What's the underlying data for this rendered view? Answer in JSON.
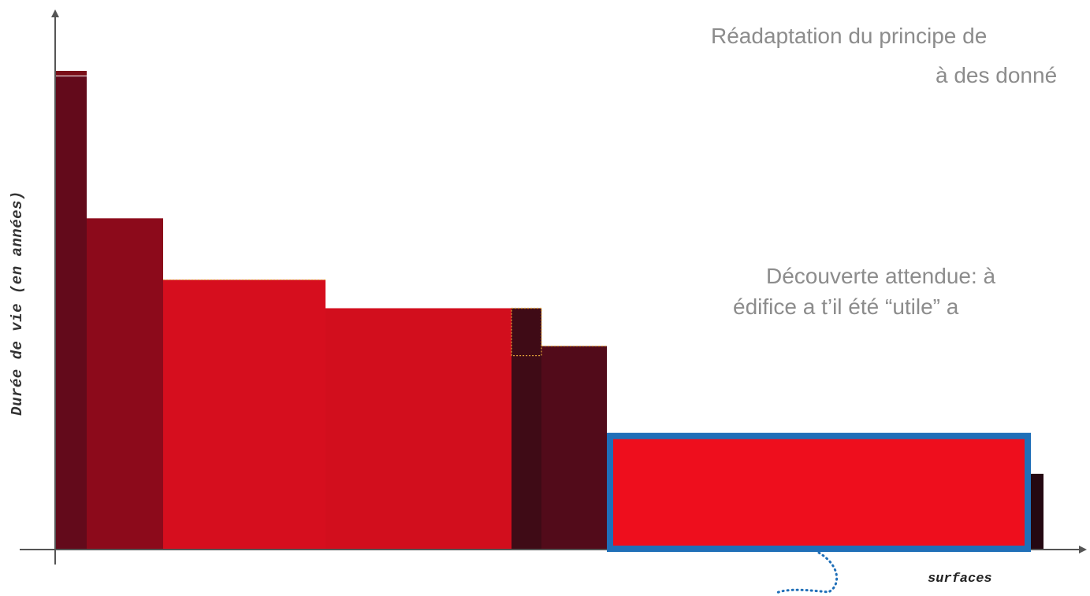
{
  "chart_data": {
    "type": "bar",
    "variant": "variable-width (surface-weighted) bars",
    "xlabel": "surfaces",
    "ylabel": "Durée de vie (en années)",
    "grid": false,
    "ylim": [
      0,
      100
    ],
    "bars": [
      {
        "width": 40,
        "value": 100,
        "color": "#630a1b",
        "cap_color": "#7a0e18"
      },
      {
        "width": 97,
        "value": 70,
        "color": "#8c0a1b"
      },
      {
        "width": 206,
        "value": 57,
        "color": "#d60e1e",
        "dotted_top": true
      },
      {
        "width": 236,
        "value": 51,
        "color": "#d20e1d"
      },
      {
        "width": 38,
        "value": 51,
        "color": "#3f0b16",
        "dotted_step": 41
      },
      {
        "width": 83,
        "value": 43,
        "color": "#520b1a",
        "dotted_top": true
      },
      {
        "width": 534,
        "value": 24,
        "color": "#ee0e1d",
        "highlighted": true
      },
      {
        "width": 20,
        "value": 16,
        "color": "#240812"
      }
    ],
    "highlight_color": "#1f6fb8",
    "notes": [
      "Réadaptation du principe de",
      "à des donné",
      "Découverte attendue: à",
      "édifice a t’il été “utile” a"
    ]
  }
}
